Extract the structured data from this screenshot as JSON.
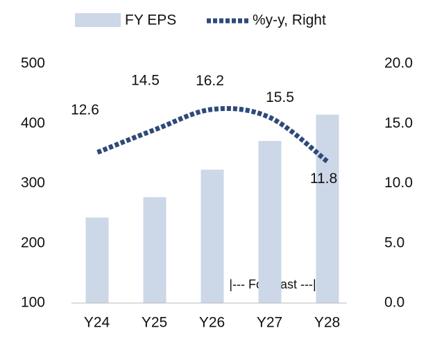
{
  "chart_data": {
    "type": "bar_line",
    "categories": [
      "Y24",
      "Y25",
      "Y26",
      "Y27",
      "Y28"
    ],
    "series": [
      {
        "name": "FY EPS",
        "type": "bar",
        "color": "#ccd7e8",
        "values": [
          243,
          277,
          323,
          371,
          415
        ]
      },
      {
        "name": "%y-y, Right",
        "type": "line",
        "axis": "y2",
        "color": "#2e4a7a",
        "values": [
          12.6,
          14.5,
          16.2,
          15.5,
          11.8
        ]
      }
    ],
    "ylim": [
      100,
      500
    ],
    "yticks": [
      100,
      200,
      300,
      400,
      500
    ],
    "y2lim": [
      0,
      20
    ],
    "y2ticks": [
      {
        "value": 0,
        "label": "0.0"
      },
      {
        "value": 5,
        "label": "5.0"
      },
      {
        "value": 10,
        "label": "10.0"
      },
      {
        "value": 15,
        "label": "15.0"
      },
      {
        "value": 20,
        "label": "20.0"
      }
    ],
    "annotation": "|--- Forecast ---|",
    "legend": "top"
  }
}
